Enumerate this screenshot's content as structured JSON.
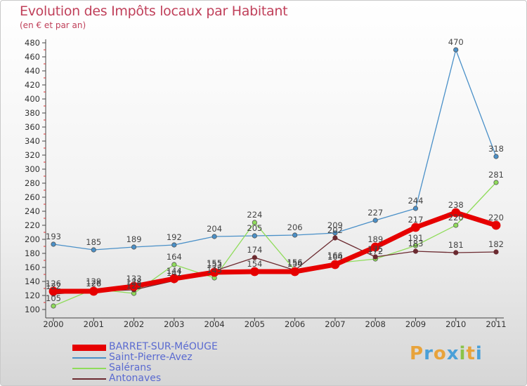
{
  "header": {
    "title": "Evolution des Impôts locaux par Habitant",
    "subtitle": "(en € et par an)"
  },
  "brand": {
    "letters": [
      "P",
      "r",
      "o",
      "x",
      "i",
      "t",
      "i"
    ],
    "colors": [
      "#e8a33b",
      "#4aa0d8",
      "#e8a33b",
      "#4aa0d8",
      "#8bc34a",
      "#e8a33b",
      "#4aa0d8"
    ]
  },
  "chart_data": {
    "type": "line",
    "title": "Evolution des Impôts locaux par Habitant",
    "ylabel": "(en € et par an)",
    "xlabel": "",
    "ylim": [
      100,
      480
    ],
    "yticks": [
      100,
      120,
      140,
      160,
      180,
      200,
      220,
      240,
      260,
      280,
      300,
      320,
      340,
      360,
      380,
      400,
      420,
      440,
      460,
      480
    ],
    "x": [
      "2000",
      "2001",
      "2002",
      "2003",
      "2004",
      "2005",
      "2006",
      "2007",
      "2008",
      "2009",
      "2010",
      "2011"
    ],
    "grid": false,
    "legend_position": "bottom-left",
    "series": [
      {
        "name": "Saint-Pierre-Avez",
        "color": "#4a90c8",
        "values": [
          193,
          185,
          189,
          192,
          204,
          205,
          206,
          209,
          227,
          244,
          470,
          318
        ]
      },
      {
        "name": "Salérans",
        "color": "#8fdc5a",
        "values": [
          105,
          129,
          123,
          164,
          145,
          224,
          156,
          166,
          172,
          191,
          220,
          281
        ]
      },
      {
        "name": "Antonaves",
        "color": "#6b2a30",
        "values": [
          122,
          126,
          128,
          141,
          155,
          174,
          156,
          202,
          175,
          183,
          181,
          182
        ]
      },
      {
        "name": "BARRET-SUR-MéOUGE",
        "color": "#e60000",
        "values": [
          126,
          126,
          133,
          144,
          153,
          154,
          154,
          164,
          189,
          217,
          238,
          220
        ]
      }
    ],
    "legend_order": [
      "BARRET-SUR-MéOUGE",
      "Saint-Pierre-Avez",
      "Salérans",
      "Antonaves"
    ]
  }
}
